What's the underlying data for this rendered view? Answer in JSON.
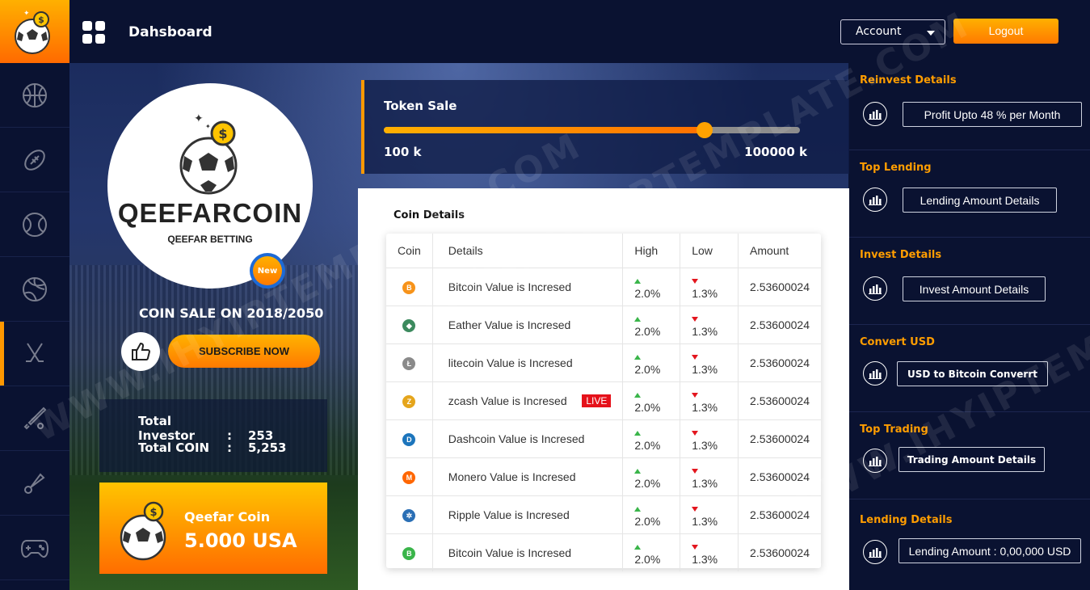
{
  "header": {
    "title": "Dahsboard",
    "account_label": "Account",
    "logout_label": "Logout"
  },
  "nav": {
    "items": [
      "basketball-icon",
      "football-icon",
      "tennis-icon",
      "volleyball-icon",
      "hockey-icon",
      "baseball-icon",
      "shuttlecock-icon",
      "gamepad-icon"
    ],
    "active_index": 4
  },
  "brand": {
    "name": "QEEFARCOIN",
    "subtitle": "QEEFAR BETTING",
    "badge": "New"
  },
  "promo": {
    "coin_sale": "COIN SALE ON  2018/2050",
    "subscribe_label": "SUBSCRIBE NOW"
  },
  "stats": {
    "investor_label": "Total Investor",
    "investor_value": "253",
    "coin_label": "Total COIN",
    "coin_value": "5,253",
    "separator": ":"
  },
  "coin_card": {
    "name": "Qeefar Coin",
    "value": "5.000 USA"
  },
  "token_sale": {
    "title": "Token Sale",
    "min_label": "100 k",
    "max_label": "100000 k",
    "progress": 0.77
  },
  "coin_details": {
    "title": "Coin Details",
    "columns": [
      "Coin",
      "Details",
      "High",
      "Low",
      "Amount"
    ],
    "live_label": "LIVE",
    "rows": [
      {
        "icon": "bitcoin-icon",
        "color": "#f7931a",
        "glyph": "B",
        "details": "Bitcoin Value is Incresed",
        "high": "2.0%",
        "low": "1.3%",
        "amount": "2.53600024"
      },
      {
        "icon": "ethereum-icon",
        "color": "#3c8a5e",
        "glyph": "◆",
        "details": "Eather Value is Incresed",
        "high": "2.0%",
        "low": "1.3%",
        "amount": "2.53600024"
      },
      {
        "icon": "litecoin-icon",
        "color": "#8a8a8a",
        "glyph": "Ł",
        "details": "litecoin Value is Incresed",
        "high": "2.0%",
        "low": "1.3%",
        "amount": "2.53600024"
      },
      {
        "icon": "zcash-icon",
        "color": "#e5a51c",
        "glyph": "Z",
        "details": "zcash Value is Incresed",
        "high": "2.0%",
        "low": "1.3%",
        "amount": "2.53600024"
      },
      {
        "icon": "dash-icon",
        "color": "#1c75bc",
        "glyph": "D",
        "details": "Dashcoin Value is Incresed",
        "high": "2.0%",
        "low": "1.3%",
        "amount": "2.53600024"
      },
      {
        "icon": "monero-icon",
        "color": "#ff6600",
        "glyph": "M",
        "details": "Monero Value is Incresed",
        "high": "2.0%",
        "low": "1.3%",
        "amount": "2.53600024"
      },
      {
        "icon": "ripple-icon",
        "color": "#2a6fb5",
        "glyph": "✲",
        "details": "Ripple Value is Incresed",
        "high": "2.0%",
        "low": "1.3%",
        "amount": "2.53600024"
      },
      {
        "icon": "bitcoin-green-icon",
        "color": "#3ab54a",
        "glyph": "B",
        "details": "Bitcoin Value is Incresed",
        "high": "2.0%",
        "low": "1.3%",
        "amount": "2.53600024"
      }
    ]
  },
  "sidebar": {
    "sections": [
      {
        "title": "Reinvest Details",
        "button": "Profit Upto 48 % per Month"
      },
      {
        "title": "Top Lending",
        "button": "Lending Amount Details"
      },
      {
        "title": "Invest Details",
        "button": "Invest Amount Details"
      },
      {
        "title": "Convert USD",
        "button": "USD to Bitcoin  Converrt"
      },
      {
        "title": "Top Trading",
        "button": "Trading Amount Details"
      },
      {
        "title": "Lending Details",
        "button": "Lending Amount : 0,00,000 USD"
      }
    ]
  },
  "watermark": "WWW.IHYIPTEMPLATE.COM",
  "colors": {
    "accent": "#ff9800",
    "navy": "#0a1231",
    "up": "#3ab54a",
    "down": "#e3161e"
  }
}
